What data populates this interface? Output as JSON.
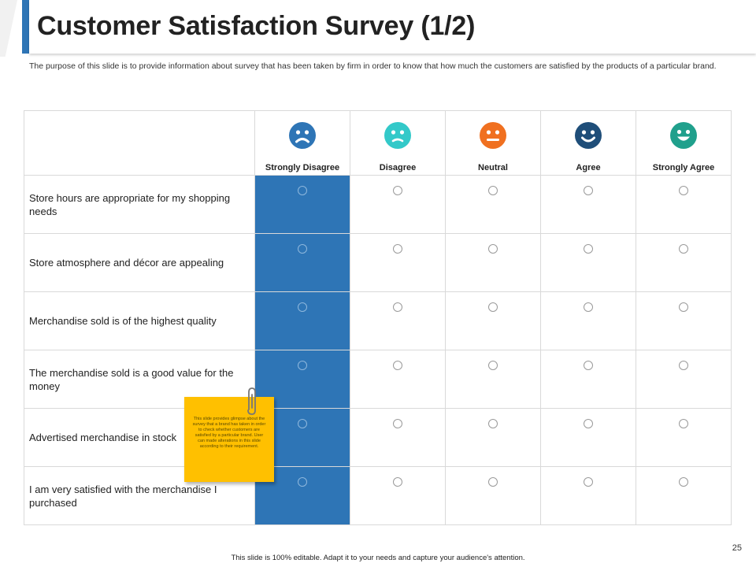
{
  "header": {
    "title": "Customer Satisfaction Survey (1/2)",
    "subtitle": "The purpose of this slide is to provide information about survey that has been taken by firm in order to know that how much the customers are satisfied by the products of a particular brand."
  },
  "survey": {
    "columns": [
      {
        "label": "Strongly  Disagree",
        "face": "frown",
        "color": "#2e75b6"
      },
      {
        "label": "Disagree",
        "face": "sad",
        "color": "#33c9c9"
      },
      {
        "label": "Neutral",
        "face": "neutral",
        "color": "#f07020"
      },
      {
        "label": "Agree",
        "face": "smile",
        "color": "#1f4e79"
      },
      {
        "label": "Strongly  Agree",
        "face": "grin",
        "color": "#20a08c"
      }
    ],
    "highlight_color": "#2e75b6",
    "statements": [
      "Store hours are appropriate for my shopping needs",
      "Store atmosphere and décor are appealing",
      "Merchandise sold is of the highest quality",
      "The merchandise sold is a good value for the money",
      "Advertised merchandise in stock",
      "I am very satisfied with the merchandise I purchased"
    ]
  },
  "sticky_note": {
    "text": "This slide provides glimpse about the survey that a brand has taken in order to check whether customers are satisfied by a particular brand. User can made alterations in this slide according to their requirement.",
    "color": "#ffc000"
  },
  "footer": {
    "page_number": "25",
    "note": "This slide is 100% editable.  Adapt it to your needs and capture your audience's attention."
  }
}
